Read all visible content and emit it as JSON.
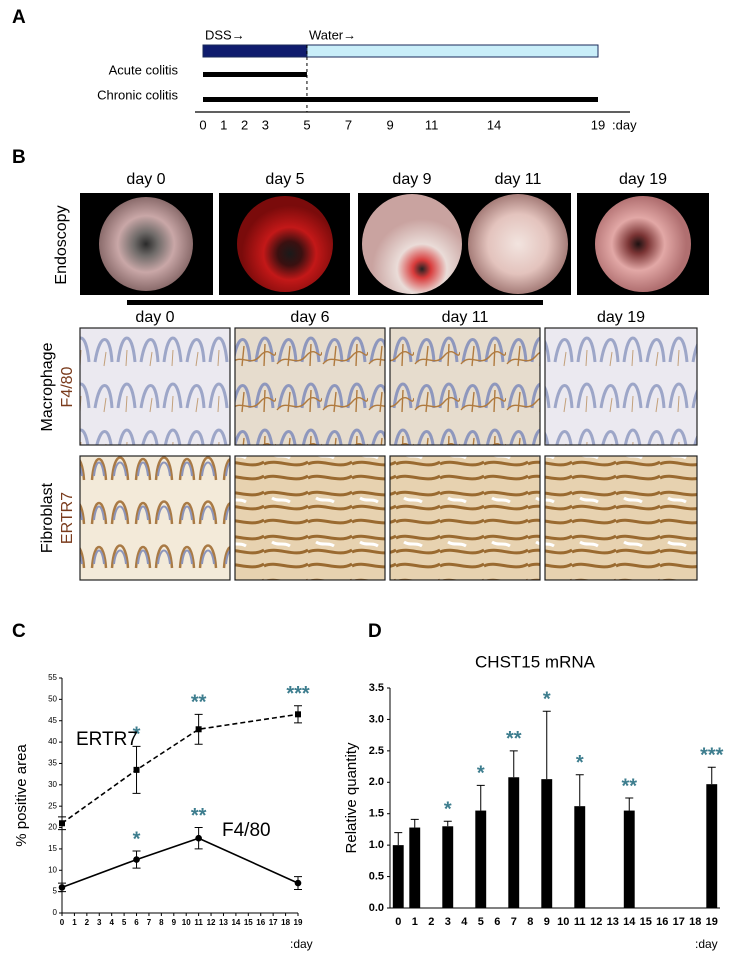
{
  "panels": {
    "a": "A",
    "b": "B",
    "c": "C",
    "d": "D"
  },
  "timeline": {
    "xlim": [
      0,
      19
    ],
    "ticks": [
      0,
      1,
      2,
      3,
      5,
      7,
      9,
      11,
      14,
      19
    ],
    "unit": ":day",
    "phases": [
      {
        "label": "DSS→",
        "start": 0,
        "end": 5,
        "color": "#0f1c6e"
      },
      {
        "label": "Water→",
        "start": 5,
        "end": 19,
        "color": "#c9eef9"
      }
    ],
    "rows": [
      {
        "label": "Acute colitis",
        "start": 0,
        "end": 5
      },
      {
        "label": "Chronic colitis",
        "start": 0,
        "end": 19
      }
    ]
  },
  "endoscopy": {
    "label": "Endoscopy",
    "days": [
      "day 0",
      "day 5",
      "day 9",
      "day 11",
      "day 19"
    ]
  },
  "histology": {
    "days": [
      "day 0",
      "day 6",
      "day 11",
      "day 19"
    ],
    "rows": [
      {
        "cell": "Macrophage",
        "marker": "F4/80"
      },
      {
        "cell": "Fibroblast",
        "marker": "ERTR7"
      }
    ]
  },
  "chart_data": [
    {
      "type": "line",
      "ylabel": "% positive area",
      "xlabel": ":day",
      "xlim": [
        0,
        19
      ],
      "xticks": [
        0,
        1,
        2,
        3,
        4,
        5,
        6,
        7,
        8,
        9,
        10,
        11,
        12,
        13,
        14,
        15,
        16,
        17,
        18,
        19
      ],
      "ylim": [
        0,
        55
      ],
      "yticks": [
        0,
        5,
        10,
        15,
        20,
        25,
        30,
        35,
        40,
        45,
        50,
        55
      ],
      "annotation_color": "#3d7d8e",
      "series": [
        {
          "name": "ERTR7",
          "color": "#000000",
          "dashed": true,
          "x": [
            0,
            6,
            11,
            19
          ],
          "values": [
            21,
            33.5,
            43,
            46.5
          ],
          "errors": [
            1.5,
            5.5,
            3.5,
            2
          ],
          "annotations": [
            null,
            "*",
            "**",
            "***"
          ]
        },
        {
          "name": "F4/80",
          "color": "#000000",
          "dashed": false,
          "x": [
            0,
            6,
            11,
            19
          ],
          "values": [
            6,
            12.5,
            17.5,
            7
          ],
          "errors": [
            1,
            2,
            2.5,
            1.5
          ],
          "annotations": [
            null,
            "*",
            "**",
            null
          ]
        }
      ]
    },
    {
      "type": "bar",
      "title": "CHST15 mRNA",
      "ylabel": "Relative quantity",
      "xlabel": ":day",
      "categories": [
        "0",
        "1",
        "2",
        "3",
        "4",
        "5",
        "6",
        "7",
        "8",
        "9",
        "10",
        "11",
        "12",
        "13",
        "14",
        "15",
        "16",
        "17",
        "18",
        "19"
      ],
      "values": [
        1.0,
        1.28,
        null,
        1.3,
        null,
        1.55,
        null,
        2.08,
        null,
        2.05,
        null,
        1.62,
        null,
        null,
        1.55,
        null,
        null,
        null,
        null,
        1.97
      ],
      "errors": [
        0.2,
        0.13,
        null,
        0.08,
        null,
        0.4,
        null,
        0.42,
        null,
        1.08,
        null,
        0.5,
        null,
        null,
        0.2,
        null,
        null,
        null,
        null,
        0.27
      ],
      "annotations": [
        null,
        null,
        null,
        "*",
        null,
        "*",
        null,
        "**",
        null,
        "*",
        null,
        "*",
        null,
        null,
        "**",
        null,
        null,
        null,
        null,
        "***"
      ],
      "annotation_color": "#3d7d8e",
      "color": "#000000",
      "ylim": [
        0,
        3.5
      ],
      "yticks": [
        {
          "value": 0,
          "label": "0.0"
        },
        0.5,
        {
          "value": 1,
          "label": "1.0"
        },
        1.5,
        {
          "value": 2,
          "label": "2.0"
        },
        2.5,
        {
          "value": 3,
          "label": "3.0"
        },
        3.5
      ]
    }
  ]
}
